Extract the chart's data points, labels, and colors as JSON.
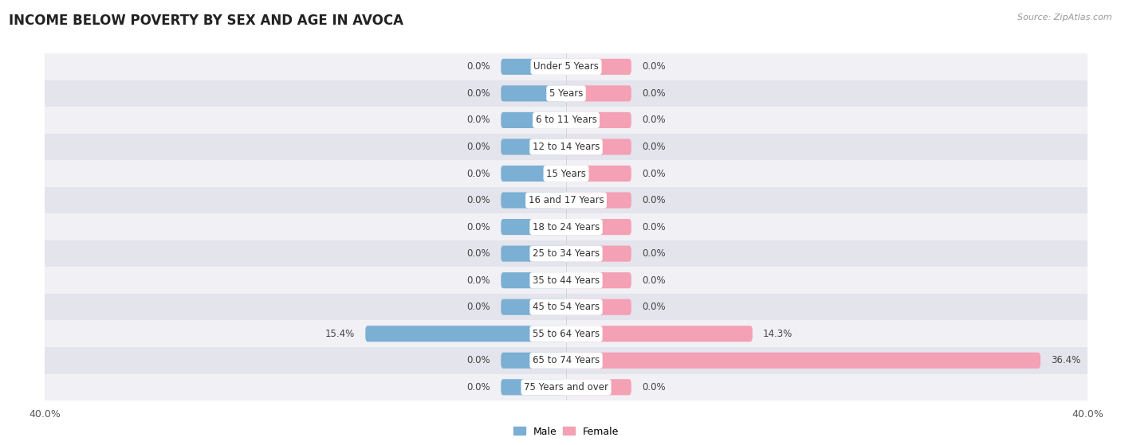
{
  "title": "INCOME BELOW POVERTY BY SEX AND AGE IN AVOCA",
  "source": "Source: ZipAtlas.com",
  "categories": [
    "Under 5 Years",
    "5 Years",
    "6 to 11 Years",
    "12 to 14 Years",
    "15 Years",
    "16 and 17 Years",
    "18 to 24 Years",
    "25 to 34 Years",
    "35 to 44 Years",
    "45 to 54 Years",
    "55 to 64 Years",
    "65 to 74 Years",
    "75 Years and over"
  ],
  "male_values": [
    0.0,
    0.0,
    0.0,
    0.0,
    0.0,
    0.0,
    0.0,
    0.0,
    0.0,
    0.0,
    15.4,
    0.0,
    0.0
  ],
  "female_values": [
    0.0,
    0.0,
    0.0,
    0.0,
    0.0,
    0.0,
    0.0,
    0.0,
    0.0,
    0.0,
    14.3,
    36.4,
    0.0
  ],
  "male_color": "#7bafd4",
  "female_color": "#f4a0b5",
  "row_bg_light": "#f0f0f5",
  "row_bg_dark": "#e4e4ec",
  "axis_max": 40.0,
  "zero_bar_width": 5.0,
  "legend_male": "Male",
  "legend_female": "Female",
  "title_fontsize": 12,
  "label_fontsize": 8.5,
  "tick_fontsize": 9,
  "value_fontsize": 8.5
}
